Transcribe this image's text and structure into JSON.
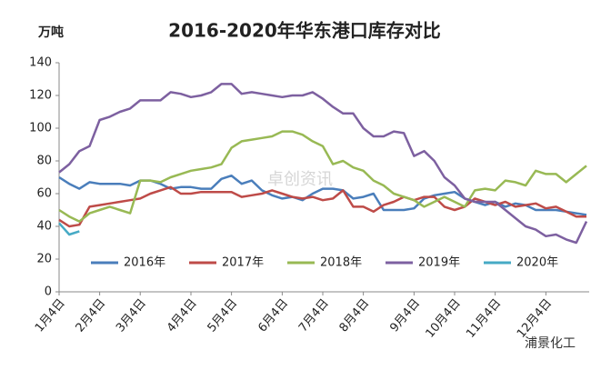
{
  "chart_data": {
    "type": "line",
    "title": "2016-2020年华东港口库存对比",
    "y_label": "万吨",
    "watermark": "卓创资讯",
    "source": "浦景化工",
    "categories": [
      "1月4日",
      null,
      null,
      null,
      "2月4日",
      null,
      null,
      null,
      "3月4日",
      null,
      null,
      null,
      null,
      "4月4日",
      null,
      null,
      null,
      "5月4日",
      null,
      null,
      null,
      null,
      "6月4日",
      null,
      null,
      null,
      "7月4日",
      null,
      null,
      null,
      "8月4日",
      null,
      null,
      null,
      null,
      "9月4日",
      null,
      null,
      null,
      "10月4日",
      null,
      null,
      null,
      "11月4日",
      null,
      null,
      null,
      null,
      "12月4日",
      null,
      null,
      null,
      null
    ],
    "series": [
      {
        "name": "2016年",
        "color": "#4a7ebb",
        "values": [
          70,
          66,
          63,
          67,
          66,
          66,
          66,
          65,
          68,
          68,
          66,
          63,
          64,
          64,
          63,
          63,
          69,
          71,
          66,
          68,
          62,
          59,
          57,
          58,
          56,
          60,
          63,
          63,
          62,
          57,
          58,
          60,
          50,
          50,
          50,
          51,
          57,
          59,
          60,
          61,
          57,
          55,
          53,
          55,
          52,
          54,
          53,
          50,
          50,
          50,
          49,
          48,
          47
        ]
      },
      {
        "name": "2017年",
        "color": "#be4b48",
        "values": [
          44,
          40,
          41,
          52,
          53,
          54,
          55,
          56,
          57,
          60,
          62,
          64,
          60,
          60,
          61,
          61,
          61,
          61,
          58,
          59,
          60,
          62,
          60,
          58,
          57,
          58,
          56,
          57,
          62,
          52,
          52,
          49,
          53,
          55,
          58,
          56,
          58,
          58,
          52,
          50,
          52,
          57,
          55,
          53,
          55,
          52,
          53,
          54,
          51,
          52,
          49,
          46,
          46
        ]
      },
      {
        "name": "2018年",
        "color": "#98b954",
        "values": [
          50,
          46,
          43,
          48,
          50,
          52,
          50,
          48,
          68,
          68,
          67,
          70,
          72,
          74,
          75,
          76,
          78,
          88,
          92,
          93,
          94,
          95,
          98,
          98,
          96,
          92,
          89,
          78,
          80,
          76,
          74,
          68,
          65,
          60,
          58,
          56,
          52,
          55,
          58,
          55,
          52,
          62,
          63,
          62,
          68,
          67,
          65,
          74,
          72,
          72,
          67,
          72,
          77
        ]
      },
      {
        "name": "2019年",
        "color": "#7d60a0",
        "values": [
          73,
          78,
          86,
          89,
          105,
          107,
          110,
          112,
          117,
          117,
          117,
          122,
          121,
          119,
          120,
          122,
          127,
          127,
          121,
          122,
          121,
          120,
          119,
          120,
          120,
          122,
          118,
          113,
          109,
          109,
          100,
          95,
          95,
          98,
          97,
          83,
          86,
          80,
          70,
          65,
          57,
          55,
          55,
          55,
          50,
          45,
          40,
          38,
          34,
          35,
          32,
          30,
          43
        ]
      },
      {
        "name": "2020年",
        "color": "#46aac5",
        "values": [
          42,
          35,
          37,
          null,
          null,
          null,
          null,
          null,
          null,
          null,
          null,
          null,
          null,
          null,
          null,
          null,
          null,
          null,
          null,
          null,
          null,
          null,
          null,
          null,
          null,
          null,
          null,
          null,
          null,
          null,
          null,
          null,
          null,
          null,
          null,
          null,
          null,
          null,
          null,
          null,
          null,
          null,
          null,
          null,
          null,
          null,
          null,
          null,
          null,
          null,
          null,
          null,
          null
        ]
      }
    ],
    "ylim": [
      0,
      140
    ],
    "yticks": [
      0,
      20,
      40,
      60,
      80,
      100,
      120,
      140
    ],
    "grid": false,
    "legend": "bottom"
  }
}
